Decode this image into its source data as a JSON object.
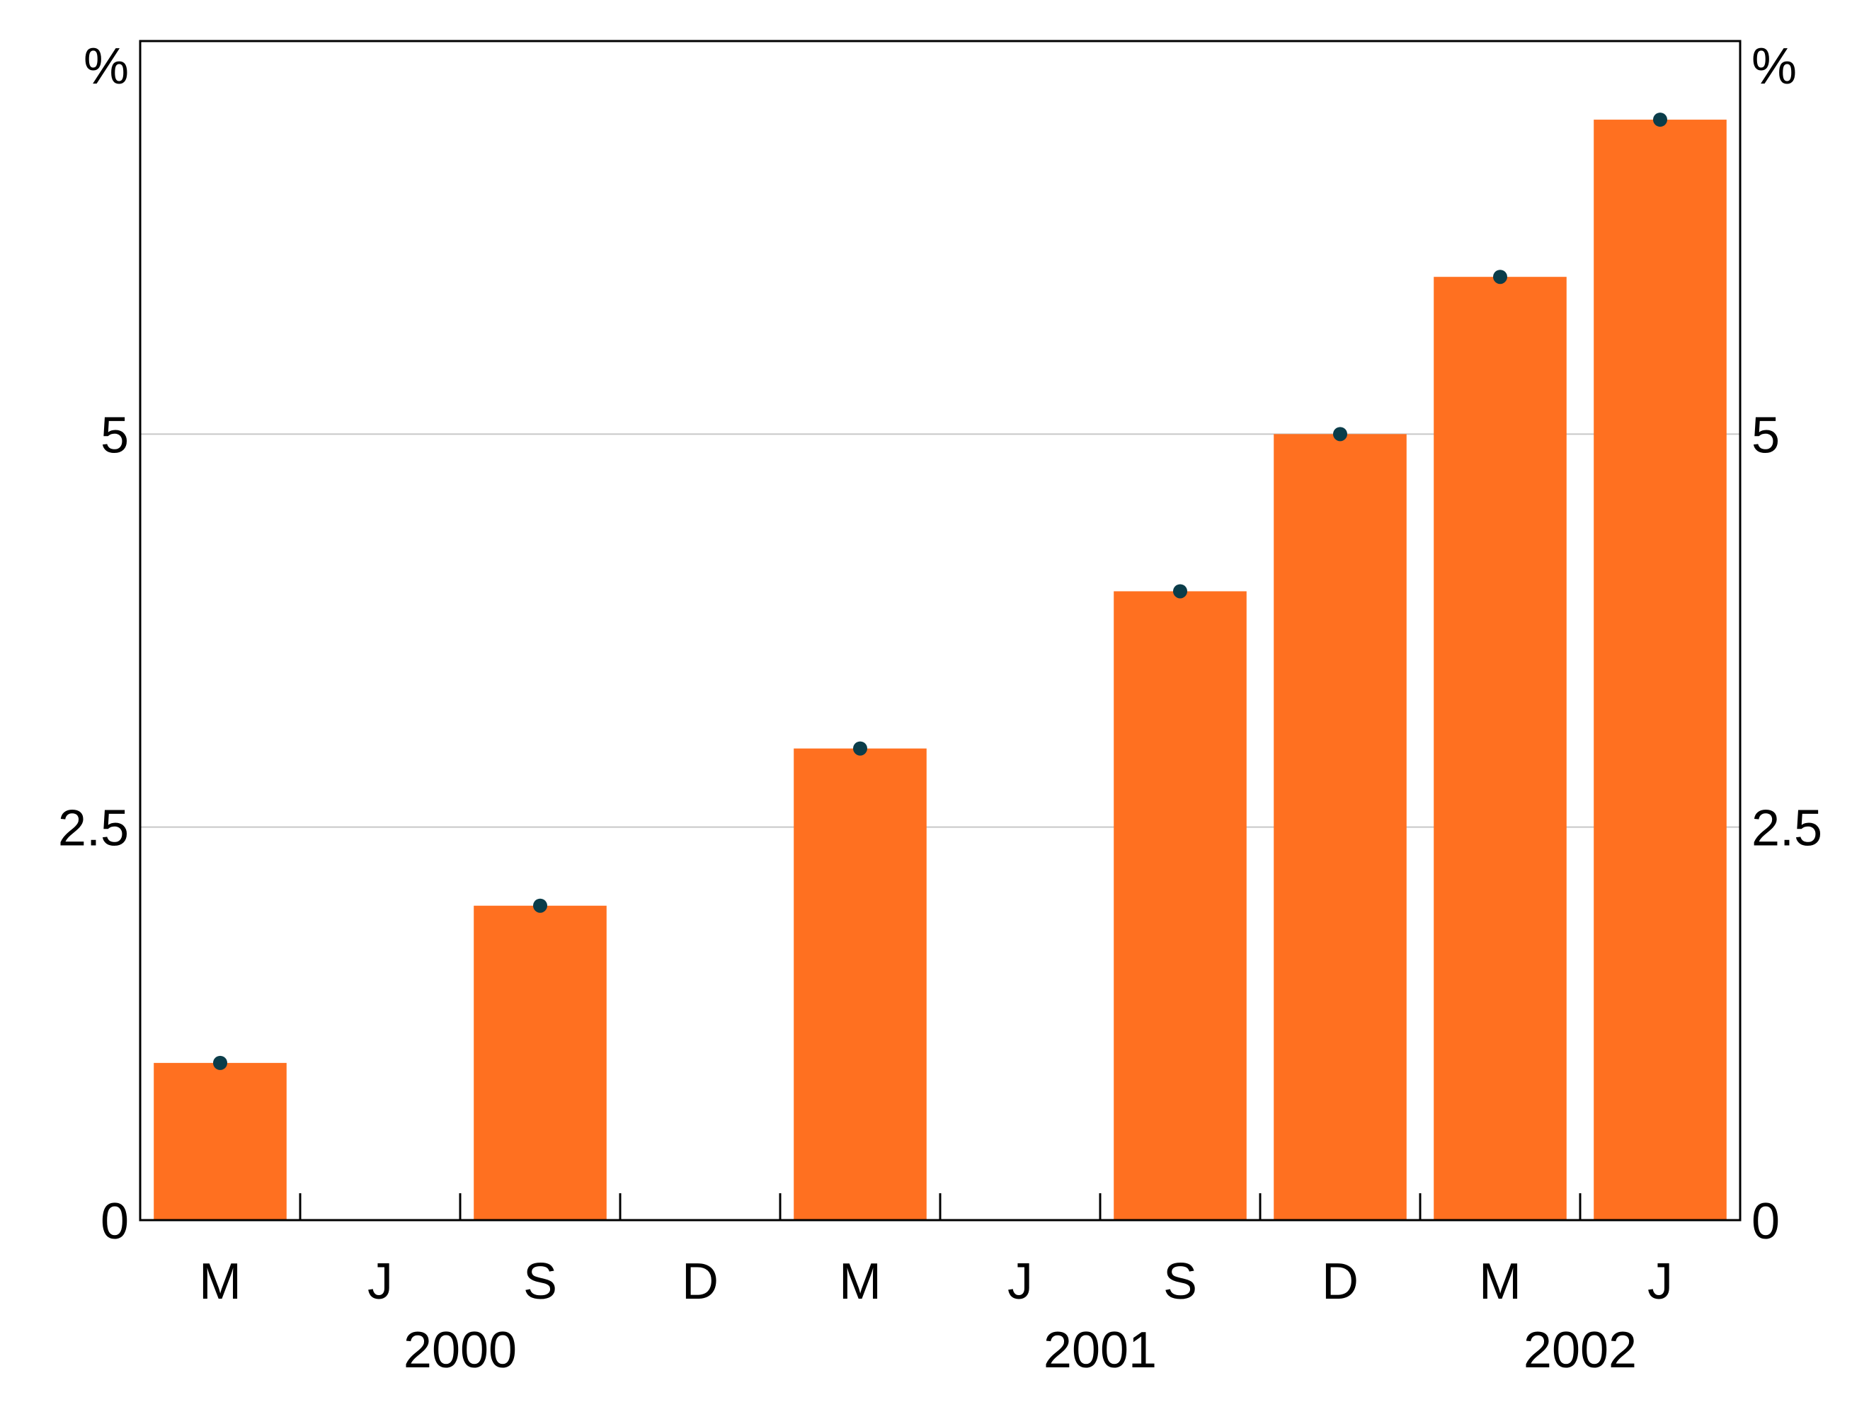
{
  "chart_data": {
    "type": "bar",
    "title": "",
    "xlabel": "",
    "ylabel": "%",
    "y2label": "%",
    "ylim": [
      0,
      7.5
    ],
    "yticks": [
      "0",
      "2.5",
      "5"
    ],
    "categories": [
      "M",
      "J",
      "S",
      "D",
      "M",
      "J",
      "S",
      "D",
      "M",
      "J"
    ],
    "years": [
      {
        "label": "2000",
        "slot_start": 0,
        "slot_end": 3
      },
      {
        "label": "2001",
        "slot_start": 4,
        "slot_end": 7
      },
      {
        "label": "2002",
        "slot_start": 8,
        "slot_end": 9
      }
    ],
    "series": [
      {
        "type": "bar",
        "values": [
          1.0,
          null,
          2.0,
          null,
          3.0,
          null,
          4.0,
          5.0,
          6.0,
          7.0
        ]
      },
      {
        "type": "scatter",
        "values": [
          1.0,
          null,
          2.0,
          null,
          3.0,
          null,
          4.0,
          5.0,
          6.0,
          7.0
        ]
      }
    ],
    "grid": true,
    "colors": {
      "bar": "#ff7020",
      "dot": "#0b3d4a",
      "grid": "#c8c8c8",
      "axis": "#000000"
    }
  }
}
